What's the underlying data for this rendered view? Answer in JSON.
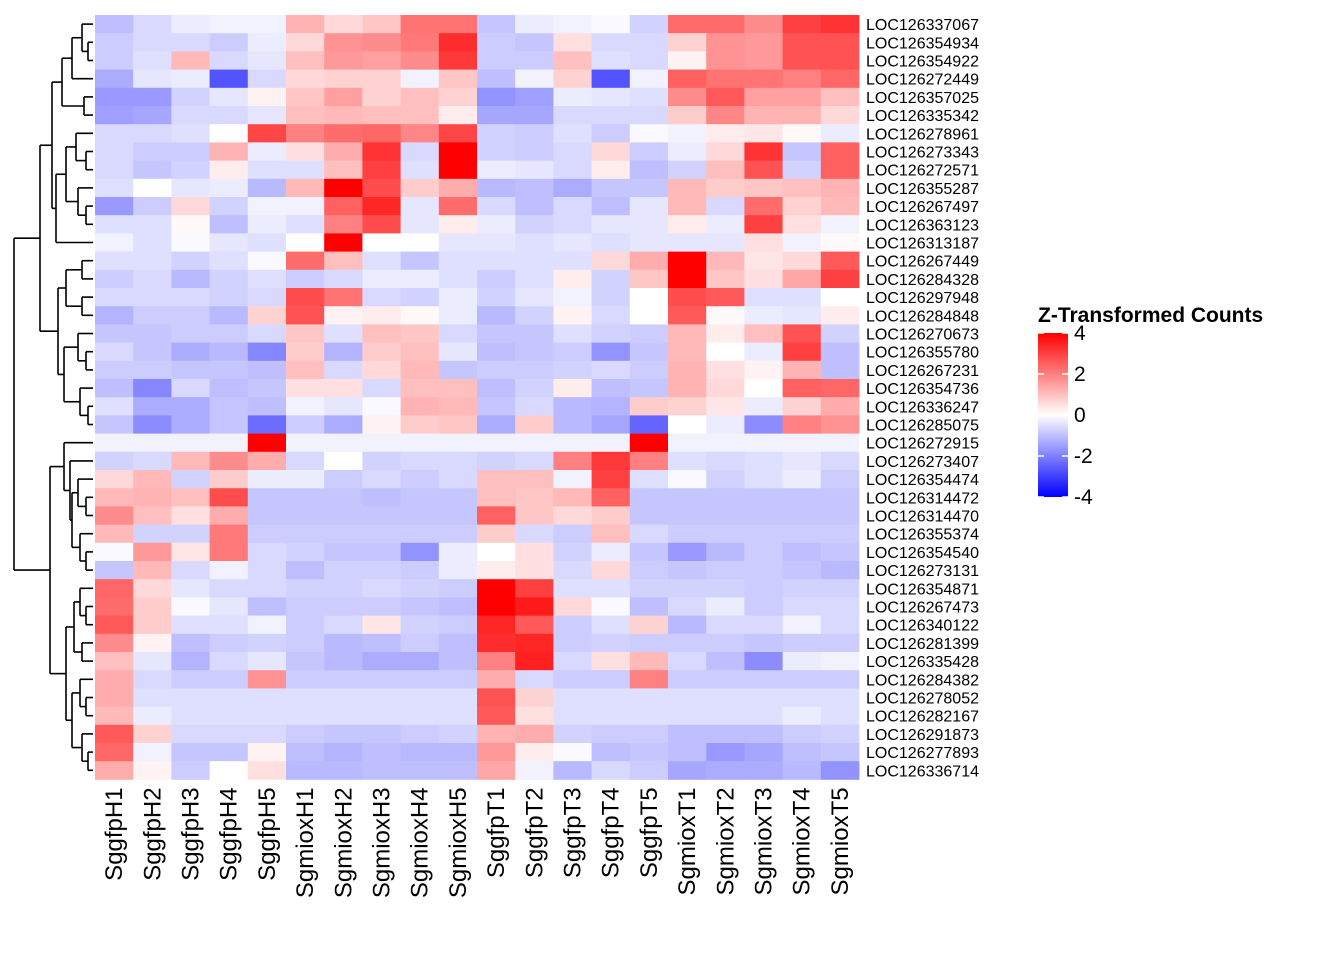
{
  "chart_data": {
    "type": "heatmap",
    "title": "",
    "legend_title": "Z-Transformed Counts",
    "legend_ticks": [
      4,
      2,
      0,
      -2,
      -4
    ],
    "color_range": [
      -4,
      4
    ],
    "colors": {
      "low": "#0000ff",
      "mid": "#ffffff",
      "high": "#ff0000"
    },
    "columns": [
      "SggfpH1",
      "SggfpH2",
      "SggfpH3",
      "SggfpH4",
      "SggfpH5",
      "SgmioxH1",
      "SgmioxH2",
      "SgmioxH3",
      "SgmioxH4",
      "SgmioxH5",
      "SggfpT1",
      "SggfpT2",
      "SggfpT3",
      "SggfpT4",
      "SggfpT5",
      "SgmioxT1",
      "SgmioxT2",
      "SgmioxT3",
      "SgmioxT4",
      "SgmioxT5"
    ],
    "rows": [
      "LOC126337067",
      "LOC126354934",
      "LOC126354922",
      "LOC126272449",
      "LOC126357025",
      "LOC126335342",
      "LOC126278961",
      "LOC126273343",
      "LOC126272571",
      "LOC126355287",
      "LOC126267497",
      "LOC126363123",
      "LOC126313187",
      "LOC126267449",
      "LOC126284328",
      "LOC126297948",
      "LOC126284848",
      "LOC126270673",
      "LOC126355780",
      "LOC126267231",
      "LOC126354736",
      "LOC126336247",
      "LOC126285075",
      "LOC126272915",
      "LOC126273407",
      "LOC126354474",
      "LOC126314472",
      "LOC126314470",
      "LOC126355374",
      "LOC126354540",
      "LOC126273131",
      "LOC126354871",
      "LOC126267473",
      "LOC126340122",
      "LOC126281399",
      "LOC126335428",
      "LOC126284382",
      "LOC126278052",
      "LOC126282167",
      "LOC126291873",
      "LOC126277893",
      "LOC126336714"
    ],
    "values": [
      [
        -1.0,
        -0.6,
        -0.3,
        -0.2,
        -0.2,
        1.2,
        0.6,
        0.9,
        2.2,
        2.2,
        -0.9,
        -0.3,
        -0.2,
        -0.1,
        -0.7,
        2.3,
        2.3,
        1.8,
        3.0,
        3.2
      ],
      [
        -0.8,
        -0.6,
        -0.6,
        -0.8,
        -0.3,
        0.6,
        1.7,
        1.8,
        2.1,
        3.3,
        -0.8,
        -0.9,
        0.5,
        -0.6,
        -0.6,
        0.7,
        1.7,
        1.6,
        2.7,
        2.7
      ],
      [
        -0.8,
        -0.5,
        1.1,
        -0.6,
        -0.4,
        1.0,
        1.6,
        1.5,
        1.8,
        3.1,
        -0.8,
        -0.8,
        1.0,
        -0.5,
        -0.6,
        0.2,
        1.7,
        1.6,
        2.7,
        2.7
      ],
      [
        -1.3,
        -0.4,
        -0.3,
        -2.7,
        -0.6,
        0.6,
        0.7,
        0.7,
        -0.2,
        0.9,
        -1.0,
        -0.2,
        0.7,
        -2.7,
        -0.2,
        2.5,
        2.2,
        2.2,
        2.0,
        2.4
      ],
      [
        -1.6,
        -1.6,
        -0.7,
        -0.4,
        0.2,
        0.9,
        1.5,
        0.7,
        1.0,
        0.7,
        -1.7,
        -1.5,
        -0.3,
        -0.4,
        -0.5,
        1.8,
        2.6,
        1.5,
        1.5,
        1.0
      ],
      [
        -1.5,
        -1.4,
        -0.6,
        -0.6,
        -0.4,
        1.0,
        1.1,
        1.0,
        1.0,
        0.3,
        -1.4,
        -1.4,
        -0.6,
        -0.6,
        -0.6,
        0.8,
        1.9,
        1.2,
        1.2,
        0.6
      ],
      [
        -0.6,
        -0.6,
        -0.5,
        0.0,
        2.9,
        2.0,
        2.3,
        2.4,
        1.9,
        2.9,
        -0.7,
        -0.8,
        -0.5,
        -0.8,
        -0.1,
        -0.2,
        0.3,
        0.4,
        0.1,
        -0.3
      ],
      [
        -0.6,
        -0.8,
        -0.8,
        1.2,
        -0.3,
        0.5,
        1.3,
        3.2,
        -0.6,
        4.2,
        -0.7,
        -0.8,
        -0.6,
        0.6,
        -0.8,
        -0.3,
        0.6,
        3.2,
        -0.9,
        2.5
      ],
      [
        -0.6,
        -0.9,
        -0.7,
        0.3,
        -0.5,
        -0.5,
        1.0,
        3.0,
        -0.5,
        4.2,
        -0.3,
        -0.4,
        -0.6,
        0.3,
        -1.0,
        -0.7,
        1.0,
        2.7,
        -0.7,
        2.5
      ],
      [
        -0.5,
        0.0,
        -0.4,
        -0.3,
        -1.1,
        1.1,
        4.0,
        2.8,
        0.8,
        1.3,
        -1.1,
        -1.0,
        -1.3,
        -0.9,
        -0.9,
        1.1,
        0.8,
        0.9,
        1.0,
        1.2
      ],
      [
        -1.6,
        -0.8,
        0.6,
        -0.7,
        -0.2,
        -0.2,
        2.5,
        3.4,
        -0.4,
        2.3,
        -0.6,
        -1.0,
        -0.6,
        -1.0,
        -0.4,
        1.1,
        -0.6,
        2.3,
        0.7,
        1.1
      ],
      [
        -0.5,
        -0.5,
        0.1,
        -1.0,
        -0.3,
        -0.5,
        2.0,
        2.8,
        -0.4,
        0.3,
        -0.3,
        -0.7,
        -0.6,
        -0.4,
        -0.4,
        0.3,
        -0.3,
        3.0,
        0.5,
        -0.2
      ],
      [
        -0.2,
        -0.5,
        -0.1,
        -0.4,
        -0.5,
        0.0,
        4.0,
        0.0,
        0.0,
        -0.4,
        -0.4,
        -0.5,
        -0.4,
        -0.5,
        -0.4,
        -0.4,
        -0.4,
        0.5,
        -0.2,
        0.1
      ],
      [
        -0.5,
        -0.5,
        -0.7,
        -0.5,
        -0.1,
        2.3,
        1.0,
        -0.5,
        -0.9,
        -0.5,
        -0.5,
        -0.5,
        -0.5,
        0.6,
        1.3,
        4.5,
        1.1,
        0.4,
        0.6,
        2.6
      ],
      [
        -0.8,
        -0.6,
        -1.1,
        -0.7,
        -0.5,
        -0.8,
        -0.6,
        -0.3,
        -0.3,
        -0.5,
        -0.8,
        -0.5,
        0.3,
        -0.7,
        0.9,
        4.5,
        0.9,
        0.5,
        1.4,
        3.0
      ],
      [
        -0.6,
        -0.6,
        -0.6,
        -0.7,
        -0.6,
        2.8,
        2.2,
        -0.6,
        -0.7,
        -0.3,
        -0.7,
        -0.4,
        -0.2,
        -0.7,
        0.0,
        2.8,
        2.6,
        -0.5,
        -0.5,
        0.0
      ],
      [
        -1.2,
        -0.8,
        -0.8,
        -1.1,
        0.7,
        2.7,
        0.2,
        0.3,
        0.1,
        -0.3,
        -1.1,
        -0.7,
        0.2,
        -0.6,
        0.0,
        2.6,
        0.1,
        -0.3,
        -0.4,
        0.3
      ],
      [
        -0.9,
        -0.9,
        -0.8,
        -0.8,
        -0.6,
        0.9,
        -0.5,
        1.0,
        0.9,
        -0.6,
        -0.9,
        -0.9,
        -0.5,
        -0.7,
        -0.8,
        1.1,
        0.3,
        1.0,
        2.7,
        -0.7
      ],
      [
        -0.6,
        -0.9,
        -1.3,
        -1.1,
        -1.9,
        0.8,
        -1.2,
        0.8,
        1.0,
        -0.4,
        -1.0,
        -0.9,
        -0.8,
        -1.7,
        -0.9,
        1.1,
        0.0,
        -0.3,
        3.0,
        -1.0
      ],
      [
        -0.8,
        -0.8,
        -0.9,
        -0.9,
        -1.0,
        1.0,
        -0.6,
        0.6,
        1.1,
        -0.9,
        -0.8,
        -0.8,
        -0.7,
        -0.6,
        -0.8,
        1.2,
        0.5,
        0.2,
        1.2,
        -1.0
      ],
      [
        -1.0,
        -1.9,
        -0.6,
        -1.0,
        -0.9,
        0.5,
        0.5,
        -0.6,
        1.0,
        1.0,
        -1.0,
        -0.7,
        0.3,
        -1.0,
        -0.9,
        1.2,
        0.6,
        0.0,
        2.5,
        2.4
      ],
      [
        -0.5,
        -1.3,
        -1.3,
        -0.9,
        -1.0,
        -0.2,
        -0.4,
        -0.1,
        1.2,
        1.1,
        -0.9,
        -0.6,
        -1.1,
        -1.2,
        0.8,
        0.7,
        0.4,
        -0.3,
        0.7,
        1.3
      ],
      [
        -0.9,
        -1.8,
        -1.3,
        -0.9,
        -2.3,
        -0.8,
        -1.3,
        0.2,
        0.8,
        0.9,
        -1.3,
        0.8,
        -1.1,
        -1.4,
        -2.4,
        0.0,
        -0.3,
        -1.8,
        2.0,
        1.7
      ],
      [
        -0.2,
        -0.2,
        -0.2,
        -0.2,
        4.2,
        -0.2,
        -0.2,
        -0.2,
        -0.2,
        -0.2,
        -0.2,
        -0.2,
        -0.2,
        -0.2,
        4.2,
        -0.2,
        -0.2,
        -0.2,
        -0.2,
        -0.2
      ],
      [
        -0.7,
        -0.6,
        1.1,
        1.8,
        1.3,
        -0.6,
        0.0,
        -0.7,
        -0.6,
        -0.6,
        -0.7,
        -0.6,
        2.0,
        3.1,
        2.0,
        -0.5,
        -0.6,
        -0.5,
        -0.4,
        -0.6
      ],
      [
        0.6,
        1.1,
        -0.7,
        0.8,
        -0.3,
        -0.3,
        -0.8,
        -0.6,
        -0.8,
        -0.6,
        1.0,
        1.0,
        -0.2,
        3.0,
        -0.5,
        -0.1,
        -0.7,
        -0.5,
        -0.3,
        -0.8
      ],
      [
        1.1,
        1.2,
        1.0,
        2.8,
        -0.9,
        -0.9,
        -0.9,
        -1.0,
        -0.9,
        -0.9,
        1.0,
        0.9,
        1.1,
        2.5,
        -0.9,
        -0.9,
        -0.9,
        -0.9,
        -0.9,
        -0.9
      ],
      [
        1.8,
        1.0,
        0.5,
        1.3,
        -0.9,
        -0.9,
        -0.9,
        -0.9,
        -0.9,
        -0.9,
        2.5,
        0.9,
        0.6,
        0.8,
        -0.9,
        -0.9,
        -0.9,
        -0.9,
        -0.9,
        -0.9
      ],
      [
        1.1,
        -0.7,
        -0.7,
        2.1,
        -0.8,
        -0.8,
        -0.8,
        -0.8,
        -0.8,
        -0.8,
        0.8,
        -0.6,
        -0.8,
        1.0,
        -0.6,
        -0.8,
        -0.8,
        -0.8,
        -0.8,
        -0.8
      ],
      [
        -0.1,
        1.6,
        0.4,
        2.1,
        -0.6,
        -0.7,
        -0.9,
        -0.9,
        -1.7,
        -0.3,
        0.0,
        0.5,
        -0.7,
        -0.3,
        -0.9,
        -1.6,
        -1.1,
        -0.8,
        -1.0,
        -0.9
      ],
      [
        -0.9,
        1.1,
        -0.6,
        -0.2,
        -0.6,
        -1.0,
        -0.7,
        -0.7,
        -0.8,
        -0.3,
        0.3,
        0.5,
        -0.6,
        0.6,
        -0.8,
        -0.9,
        -0.8,
        -0.8,
        -0.9,
        -1.1
      ],
      [
        2.4,
        0.6,
        -0.4,
        -0.6,
        -0.6,
        -0.7,
        -0.7,
        -0.6,
        -0.7,
        -0.8,
        4.2,
        3.0,
        -0.5,
        -0.5,
        -0.7,
        -0.7,
        -0.7,
        -0.8,
        -0.7,
        -0.7
      ],
      [
        2.3,
        0.8,
        -0.1,
        -0.4,
        -1.0,
        -0.8,
        -0.8,
        -0.8,
        -0.9,
        -1.0,
        4.0,
        3.6,
        0.6,
        -0.1,
        -1.0,
        -0.6,
        -0.3,
        -0.8,
        -0.6,
        -0.6
      ],
      [
        2.6,
        0.8,
        -0.5,
        -0.5,
        -0.2,
        -0.8,
        -0.6,
        0.4,
        -0.7,
        -0.8,
        3.4,
        2.6,
        -0.8,
        -0.5,
        0.7,
        -1.1,
        -0.6,
        -0.6,
        -0.2,
        -0.6
      ],
      [
        1.8,
        0.2,
        -1.0,
        -0.8,
        -0.7,
        -0.8,
        -1.1,
        -1.0,
        -0.8,
        -1.0,
        3.3,
        3.4,
        -0.8,
        -0.7,
        -0.8,
        -0.8,
        -0.8,
        -0.9,
        -0.8,
        -0.8
      ],
      [
        1.0,
        -0.4,
        -1.2,
        -0.6,
        -0.4,
        -0.9,
        -1.1,
        -1.3,
        -1.3,
        -1.0,
        2.0,
        3.5,
        -0.6,
        0.5,
        1.1,
        -0.6,
        -1.0,
        -1.8,
        -0.3,
        -0.2
      ],
      [
        1.3,
        -0.6,
        -0.8,
        -0.8,
        1.7,
        -0.8,
        -0.8,
        -0.8,
        -0.8,
        -0.8,
        1.3,
        -0.6,
        -0.8,
        -0.8,
        2.0,
        -0.8,
        -0.8,
        -0.8,
        -0.8,
        -0.8
      ],
      [
        1.3,
        -0.5,
        -0.5,
        -0.5,
        -0.5,
        -0.5,
        -0.5,
        -0.5,
        -0.5,
        -0.5,
        2.7,
        0.7,
        -0.5,
        -0.5,
        -0.5,
        -0.5,
        -0.5,
        -0.5,
        -0.5,
        -0.5
      ],
      [
        1.1,
        -0.3,
        -0.5,
        -0.5,
        -0.5,
        -0.5,
        -0.5,
        -0.5,
        -0.5,
        -0.5,
        2.6,
        0.5,
        -0.5,
        -0.5,
        -0.5,
        -0.5,
        -0.5,
        -0.5,
        -0.3,
        -0.5
      ],
      [
        2.6,
        0.7,
        -0.6,
        -0.6,
        -0.6,
        -0.8,
        -0.9,
        -0.9,
        -0.8,
        -0.7,
        1.2,
        1.3,
        -0.7,
        -0.8,
        -0.8,
        -1.0,
        -1.0,
        -1.0,
        -0.8,
        -0.7
      ],
      [
        2.4,
        -0.2,
        -0.9,
        -0.9,
        0.2,
        -1.0,
        -1.2,
        -1.0,
        -1.1,
        -1.1,
        1.6,
        0.3,
        -0.1,
        -1.0,
        -0.9,
        -1.0,
        -1.6,
        -1.4,
        -1.0,
        -0.9
      ],
      [
        1.3,
        0.2,
        -0.8,
        0.0,
        0.5,
        -1.1,
        -1.1,
        -1.0,
        -1.0,
        -1.0,
        1.4,
        -0.2,
        -1.1,
        -0.6,
        -0.8,
        -1.4,
        -1.3,
        -1.3,
        -1.1,
        -1.7
      ]
    ]
  }
}
